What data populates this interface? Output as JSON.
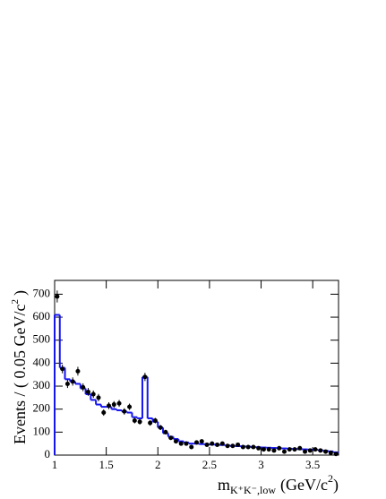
{
  "chart_data": {
    "type": "histogram",
    "x_label": {
      "main": "m",
      "sub": "K⁺K⁻,low",
      "unit": "(GeV/c",
      "sup": "2",
      "end": ")"
    },
    "y_label": {
      "main": "Events / ( 0.05 GeV/c",
      "sup": "2",
      "end": ")"
    },
    "bins": [
      1,
      1.05,
      1.1,
      1.15,
      1.2,
      1.25,
      1.3,
      1.35,
      1.4,
      1.45,
      1.5,
      1.55,
      1.6,
      1.65,
      1.7,
      1.75,
      1.8,
      1.85,
      1.9,
      1.95,
      2,
      2.05,
      2.1,
      2.15,
      2.2,
      2.25,
      2.3,
      2.35,
      2.4,
      2.45,
      2.5,
      2.55,
      2.6,
      2.65,
      2.7,
      2.75,
      2.8,
      2.85,
      2.9,
      2.95,
      3,
      3.05,
      3.1,
      3.15,
      3.2,
      3.25,
      3.3,
      3.35,
      3.4,
      3.45,
      3.5,
      3.55,
      3.6,
      3.65,
      3.7,
      3.75
    ],
    "series": [
      {
        "style": "points",
        "color": "#000000",
        "values": [
          690,
          375,
          310,
          320,
          365,
          295,
          275,
          265,
          250,
          185,
          215,
          220,
          225,
          190,
          210,
          150,
          145,
          340,
          140,
          150,
          120,
          100,
          75,
          60,
          50,
          50,
          35,
          55,
          60,
          45,
          50,
          45,
          50,
          40,
          40,
          45,
          35,
          35,
          35,
          30,
          25,
          25,
          20,
          30,
          15,
          25,
          25,
          30,
          15,
          20,
          25,
          20,
          15,
          10,
          5
        ],
        "errors": [
          26,
          19,
          18,
          18,
          19,
          17,
          17,
          16,
          16,
          14,
          15,
          15,
          15,
          14,
          14,
          12,
          12,
          18,
          12,
          12,
          11,
          10,
          9,
          8,
          7,
          7,
          6,
          7,
          8,
          7,
          7,
          7,
          7,
          6,
          6,
          7,
          6,
          6,
          6,
          5,
          5,
          5,
          4,
          5,
          4,
          5,
          5,
          5,
          4,
          4,
          5,
          4,
          4,
          3,
          2
        ]
      },
      {
        "style": "step",
        "color": "#1515f0",
        "values": [
          610,
          380,
          330,
          320,
          310,
          290,
          265,
          240,
          220,
          210,
          210,
          200,
          195,
          190,
          185,
          165,
          160,
          340,
          160,
          145,
          120,
          95,
          80,
          70,
          60,
          55,
          50,
          50,
          48,
          47,
          46,
          45,
          44,
          42,
          40,
          39,
          38,
          37,
          35,
          34,
          33,
          32,
          31,
          30,
          29,
          28,
          27,
          26,
          25,
          24,
          23,
          21,
          19,
          16,
          12
        ]
      }
    ],
    "xlim": [
      1,
      3.75
    ],
    "ylim": [
      0,
      760
    ],
    "xticks": [
      1,
      1.5,
      2,
      2.5,
      3,
      3.5
    ],
    "yticks": [
      0,
      100,
      200,
      300,
      400,
      500,
      600,
      700
    ]
  }
}
